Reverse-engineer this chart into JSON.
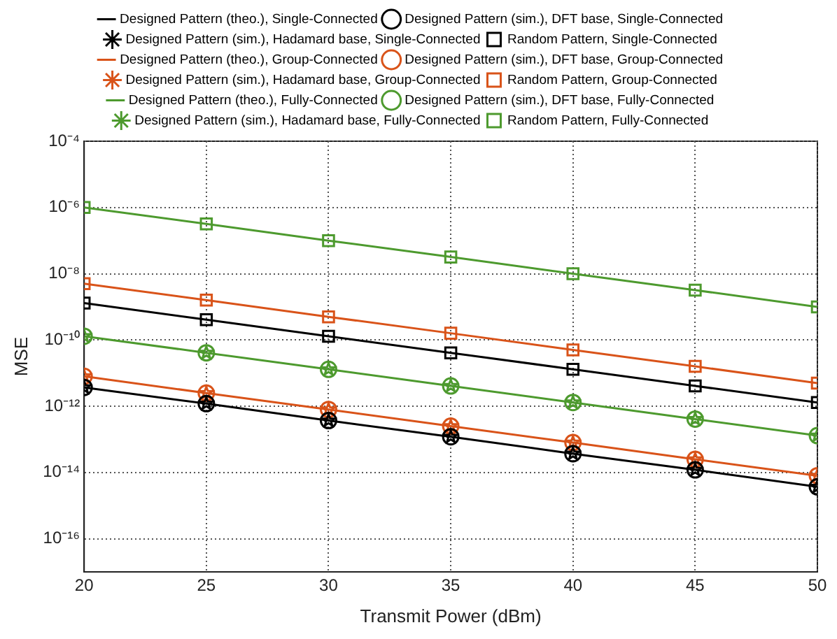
{
  "chart_data": {
    "type": "line",
    "xlabel": "Transmit Power (dBm)",
    "ylabel": "MSE",
    "x": [
      20,
      25,
      30,
      35,
      40,
      45,
      50
    ],
    "xlim": [
      20,
      50
    ],
    "xticks": [
      20,
      25,
      30,
      35,
      40,
      45,
      50
    ],
    "ylim": [
      1e-17,
      0.0001
    ],
    "yticks": [
      {
        "value": 1e-16,
        "label": "10⁻¹⁶"
      },
      {
        "value": 1e-14,
        "label": "10⁻¹⁴"
      },
      {
        "value": 1e-12,
        "label": "10⁻¹²"
      },
      {
        "value": 1e-10,
        "label": "10⁻¹⁰"
      },
      {
        "value": 1e-08,
        "label": "10⁻⁸"
      },
      {
        "value": 1e-06,
        "label": "10⁻⁶"
      },
      {
        "value": 0.0001,
        "label": "10⁻⁴"
      }
    ],
    "log": "y",
    "grid": true,
    "legend": "top",
    "series": [
      {
        "name": "Designed Pattern (theo.), Single-Connected",
        "type": "line",
        "marker": "none",
        "color": "#000000",
        "values": [
          3.7e-12,
          1.2e-12,
          3.7e-13,
          1.2e-13,
          3.7e-14,
          1.2e-14,
          3.7e-15
        ]
      },
      {
        "name": "Designed Pattern (sim.), DFT base, Single-Connected",
        "type": "scatter",
        "marker": "circle",
        "color": "#000000",
        "values": [
          3.7e-12,
          1.2e-12,
          3.7e-13,
          1.2e-13,
          3.7e-14,
          1.2e-14,
          3.7e-15
        ]
      },
      {
        "name": "Designed Pattern (sim.), Hadamard base, Single-Connected",
        "type": "scatter",
        "marker": "star",
        "color": "#000000",
        "values": [
          3.7e-12,
          1.2e-12,
          3.7e-13,
          1.2e-13,
          3.7e-14,
          1.2e-14,
          3.7e-15
        ]
      },
      {
        "name": "Random Pattern, Single-Connected",
        "type": "line",
        "marker": "square",
        "color": "#000000",
        "values": [
          1.3e-09,
          4.1e-10,
          1.3e-10,
          4.1e-11,
          1.3e-11,
          4.1e-12,
          1.3e-12
        ]
      },
      {
        "name": "Designed Pattern (theo.), Group-Connected",
        "type": "line",
        "marker": "none",
        "color": "#d95319",
        "values": [
          8e-12,
          2.5e-12,
          8e-13,
          2.5e-13,
          8e-14,
          2.5e-14,
          8e-15
        ]
      },
      {
        "name": "Designed Pattern (sim.), DFT base, Group-Connected",
        "type": "scatter",
        "marker": "circle",
        "color": "#d95319",
        "values": [
          8e-12,
          2.5e-12,
          8e-13,
          2.5e-13,
          8e-14,
          2.5e-14,
          8e-15
        ]
      },
      {
        "name": "Designed Pattern (sim.), Hadamard base, Group-Connected",
        "type": "scatter",
        "marker": "star",
        "color": "#d95319",
        "values": [
          8e-12,
          2.5e-12,
          8e-13,
          2.5e-13,
          8e-14,
          2.5e-14,
          8e-15
        ]
      },
      {
        "name": "Random Pattern, Group-Connected",
        "type": "line",
        "marker": "square",
        "color": "#d95319",
        "values": [
          5e-09,
          1.6e-09,
          5e-10,
          1.6e-10,
          5e-11,
          1.6e-11,
          5e-12
        ]
      },
      {
        "name": "Designed Pattern (theo.), Fully-Connected",
        "type": "line",
        "marker": "none",
        "color": "#4d9a2e",
        "values": [
          1.3e-10,
          4.1e-11,
          1.3e-11,
          4.1e-12,
          1.3e-12,
          4.1e-13,
          1.3e-13
        ]
      },
      {
        "name": "Designed Pattern (sim.), DFT base, Fully-Connected",
        "type": "scatter",
        "marker": "circle",
        "color": "#4d9a2e",
        "values": [
          1.3e-10,
          4.1e-11,
          1.3e-11,
          4.1e-12,
          1.3e-12,
          4.1e-13,
          1.3e-13
        ]
      },
      {
        "name": "Designed Pattern (sim.), Hadamard base, Fully-Connected",
        "type": "scatter",
        "marker": "star",
        "color": "#4d9a2e",
        "values": [
          1.3e-10,
          4.1e-11,
          1.3e-11,
          4.1e-12,
          1.3e-12,
          4.1e-13,
          1.3e-13
        ]
      },
      {
        "name": "Random Pattern, Fully-Connected",
        "type": "line",
        "marker": "square",
        "color": "#4d9a2e",
        "values": [
          1e-06,
          3.2e-07,
          1e-07,
          3.2e-08,
          1e-08,
          3.2e-09,
          1e-09
        ]
      }
    ]
  }
}
